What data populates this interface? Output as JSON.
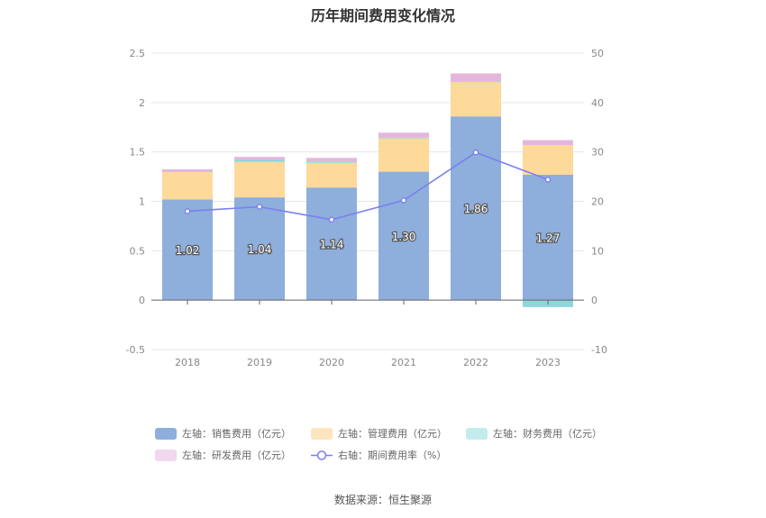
{
  "chart_data": {
    "type": "bar",
    "title": "历年期间费用变化情况",
    "categories": [
      "2018",
      "2019",
      "2020",
      "2021",
      "2022",
      "2023"
    ],
    "left_axis": {
      "ticks": [
        "2.5",
        "2",
        "1.5",
        "1",
        "0.5",
        "0",
        "-0.5"
      ],
      "ylim": [
        -0.5,
        2.5
      ]
    },
    "right_axis": {
      "ticks": [
        "50",
        "40",
        "30",
        "20",
        "10",
        "0",
        "-10"
      ],
      "ylim": [
        -10,
        50
      ]
    },
    "series": [
      {
        "name": "左轴：销售费用（亿元）",
        "type": "bar",
        "stack": true,
        "color": "#8eaedc",
        "values": [
          1.02,
          1.04,
          1.14,
          1.3,
          1.86,
          1.27
        ],
        "labels": [
          "1.02",
          "1.04",
          "1.14",
          "1.30",
          "1.86",
          "1.27"
        ]
      },
      {
        "name": "左轴：管理费用（亿元）",
        "type": "bar",
        "stack": true,
        "color": "#fdd99a",
        "values": [
          0.28,
          0.36,
          0.25,
          0.34,
          0.35,
          0.3
        ]
      },
      {
        "name": "左轴：财务费用（亿元）",
        "type": "bar",
        "stack": true,
        "color": "#8dd6d9",
        "values": [
          0.005,
          0.02,
          0.01,
          0.005,
          0.005,
          -0.07
        ]
      },
      {
        "name": "左轴：研发费用（亿元）",
        "type": "bar",
        "stack": true,
        "color": "#e3b7dc",
        "values": [
          0.02,
          0.03,
          0.04,
          0.05,
          0.08,
          0.05
        ]
      },
      {
        "name": "右轴：期间费用率（%）",
        "type": "line",
        "axis": "right",
        "color": "#7b7ff0",
        "values": [
          18.0,
          18.9,
          16.3,
          20.2,
          29.9,
          24.4
        ]
      }
    ],
    "legend": [
      {
        "label": "左轴：销售费用（亿元）",
        "color": "#8eaedc",
        "kind": "box"
      },
      {
        "label": "左轴：管理费用（亿元）",
        "color": "#fde5bd",
        "kind": "box"
      },
      {
        "label": "左轴：财务费用（亿元）",
        "color": "#c3ecec",
        "kind": "box"
      },
      {
        "label": "左轴：研发费用（亿元）",
        "color": "#f1d8ee",
        "kind": "box"
      },
      {
        "label": "右轴：期间费用率（%）",
        "color": "#7b7ff0",
        "kind": "line"
      }
    ]
  },
  "footer": {
    "source": "数据来源：恒生聚源"
  }
}
